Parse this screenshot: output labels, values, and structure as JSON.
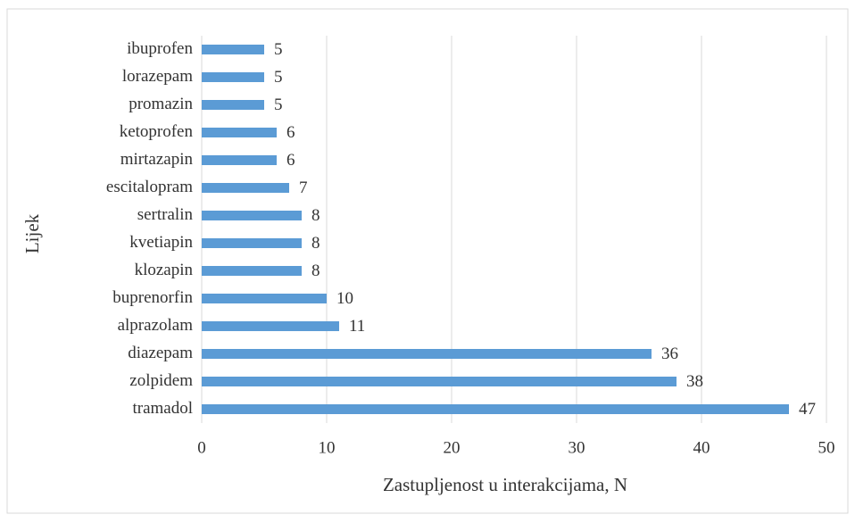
{
  "chart_data": {
    "type": "bar",
    "orientation": "horizontal",
    "x_label": "Zastupljenost u interakcijama, N",
    "y_label": "Lijek",
    "categories": [
      "ibuprofen",
      "lorazepam",
      "promazin",
      "ketoprofen",
      "mirtazapin",
      "escitalopram",
      "sertralin",
      "kvetiapin",
      "klozapin",
      "buprenorfin",
      "alprazolam",
      "diazepam",
      "zolpidem",
      "tramadol"
    ],
    "values": [
      5,
      5,
      5,
      6,
      6,
      7,
      8,
      8,
      8,
      10,
      11,
      36,
      38,
      47
    ],
    "color": "#5b9bd5",
    "xlim": [
      0,
      50
    ],
    "xticks": [
      0,
      10,
      20,
      30,
      40,
      50
    ],
    "grid": true
  }
}
